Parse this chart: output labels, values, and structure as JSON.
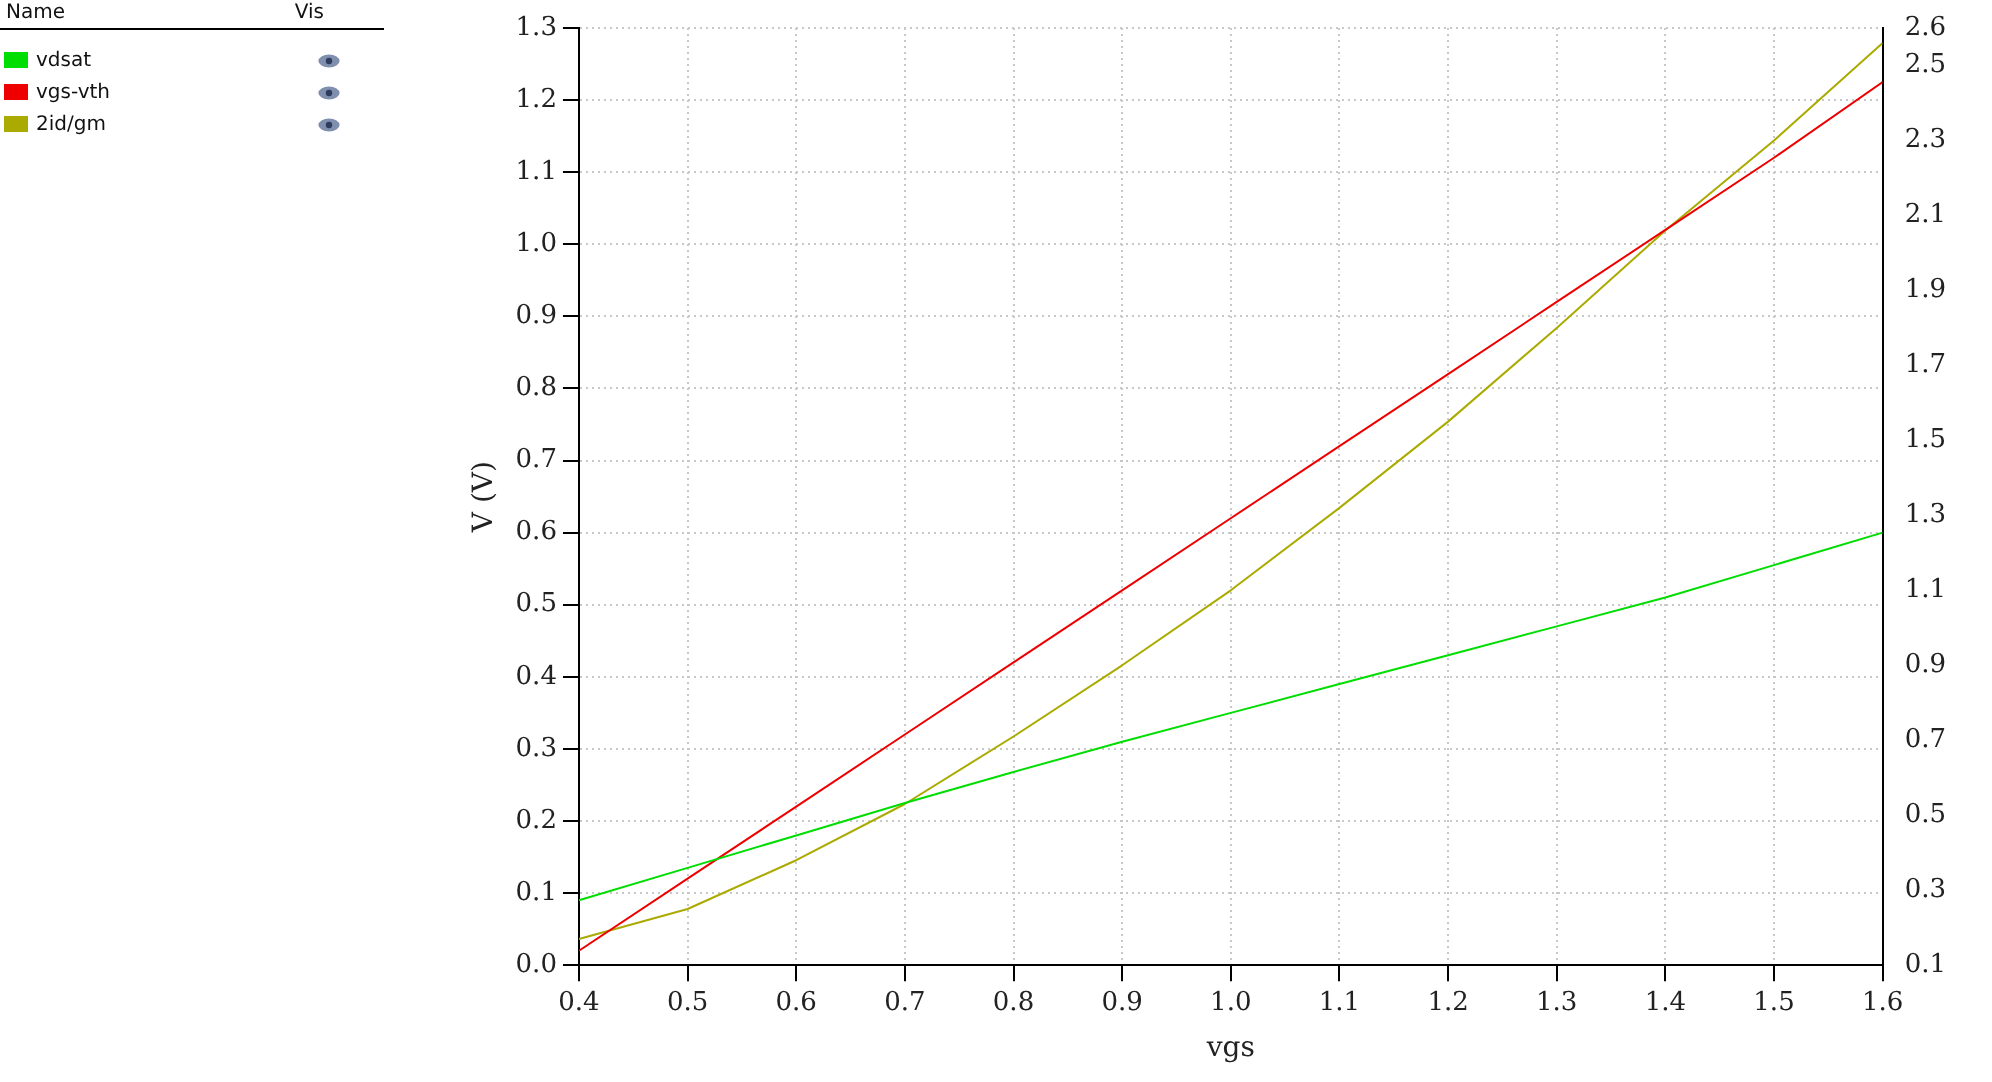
{
  "chart_data": {
    "type": "line",
    "xlabel": "vgs",
    "ylabel": "V (V)",
    "legend_title": "Name",
    "annotations": [
      "Vis"
    ],
    "x": [
      0.4,
      0.5,
      0.6,
      0.7,
      0.8,
      0.9,
      1.0,
      1.1,
      1.2,
      1.3,
      1.4,
      1.5,
      1.6
    ],
    "series": [
      {
        "name": "vdsat",
        "color": "#00dd00",
        "values": [
          0.09,
          0.135,
          0.18,
          0.225,
          0.268,
          0.31,
          0.35,
          0.39,
          0.43,
          0.47,
          0.51,
          0.555,
          0.6
        ]
      },
      {
        "name": "vgs-vth",
        "color": "#ee0000",
        "values": [
          0.02,
          0.12,
          0.22,
          0.32,
          0.42,
          0.52,
          0.62,
          0.72,
          0.82,
          0.92,
          1.02,
          1.12,
          1.225
        ]
      },
      {
        "name": "2id/gm",
        "color": "#aaaa00",
        "axis": "y2",
        "values": [
          0.17,
          0.25,
          0.38,
          0.53,
          0.71,
          0.9,
          1.1,
          1.32,
          1.55,
          1.8,
          2.06,
          2.3,
          2.56
        ]
      }
    ],
    "xlim": [
      0.4,
      1.6
    ],
    "xticks": [
      0.4,
      0.5,
      0.6,
      0.7,
      0.8,
      0.9,
      {
        "value": 1.0,
        "label": "1.0"
      },
      1.1,
      1.2,
      1.3,
      1.4,
      1.5,
      1.6
    ],
    "ylim": [
      0,
      1.3
    ],
    "yticks": [
      {
        "value": 0,
        "label": "0.0"
      },
      0.1,
      0.2,
      0.3,
      0.4,
      0.5,
      0.6,
      0.7,
      0.8,
      0.9,
      {
        "value": 1.0,
        "label": "1.0"
      },
      1.1,
      1.2,
      1.3
    ],
    "y2lim": [
      0.1,
      2.6
    ],
    "y2ticks": [
      0.1,
      0.3,
      0.5,
      0.7,
      0.9,
      1.1,
      1.3,
      1.5,
      1.7,
      1.9,
      2.1,
      2.3,
      2.5,
      2.6
    ],
    "grid": true,
    "legend": "left",
    "marker": "none",
    "line_style": "solid"
  }
}
